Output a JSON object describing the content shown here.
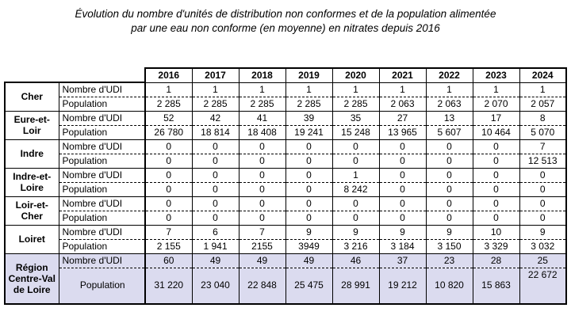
{
  "title": {
    "line1": "Évolution du nombre d'unités de distribution non conformes et de la population alimentée",
    "line2": "par une eau non conforme (en moyenne) en nitrates depuis 2016"
  },
  "table": {
    "years": [
      "2016",
      "2017",
      "2018",
      "2019",
      "2020",
      "2021",
      "2022",
      "2023",
      "2024"
    ],
    "metric_labels": {
      "udi": "Nombre d'UDI",
      "population": "Population"
    },
    "groups": [
      {
        "name": "Cher",
        "highlight": false,
        "udi": [
          "1",
          "1",
          "1",
          "1",
          "1",
          "1",
          "1",
          "1",
          "1"
        ],
        "population": [
          "2 285",
          "2 285",
          "2 285",
          "2 285",
          "2 285",
          "2 063",
          "2 063",
          "2 070",
          "2 057"
        ]
      },
      {
        "name": "Eure-et-Loir",
        "highlight": false,
        "udi": [
          "52",
          "42",
          "41",
          "39",
          "35",
          "27",
          "13",
          "17",
          "8"
        ],
        "population": [
          "26 780",
          "18 814",
          "18 408",
          "19 241",
          "15 248",
          "13 965",
          "5 607",
          "10 464",
          "5 070"
        ]
      },
      {
        "name": "Indre",
        "highlight": false,
        "udi": [
          "0",
          "0",
          "0",
          "0",
          "0",
          "0",
          "0",
          "0",
          "7"
        ],
        "population": [
          "0",
          "0",
          "0",
          "0",
          "0",
          "0",
          "0",
          "0",
          "12 513"
        ]
      },
      {
        "name": "Indre-et-Loire",
        "highlight": false,
        "udi": [
          "0",
          "0",
          "0",
          "0",
          "1",
          "0",
          "0",
          "0",
          "0"
        ],
        "population": [
          "0",
          "0",
          "0",
          "0",
          "8 242",
          "0",
          "0",
          "0",
          "0"
        ]
      },
      {
        "name": "Loir-et-Cher",
        "highlight": false,
        "udi": [
          "0",
          "0",
          "0",
          "0",
          "0",
          "0",
          "0",
          "0",
          "0"
        ],
        "population": [
          "0",
          "0",
          "0",
          "0",
          "0",
          "0",
          "0",
          "0",
          "0"
        ]
      },
      {
        "name": "Loiret",
        "highlight": false,
        "udi": [
          "7",
          "6",
          "7",
          "9",
          "9",
          "9",
          "9",
          "10",
          "9"
        ],
        "population": [
          "2 155",
          "1 941",
          "2155",
          "3949",
          "3 216",
          "3 184",
          "3 150",
          "3 329",
          "3 032"
        ]
      },
      {
        "name": "Région Centre-Val de Loire",
        "highlight": true,
        "udi": [
          "60",
          "49",
          "49",
          "49",
          "46",
          "37",
          "23",
          "28",
          "25"
        ],
        "population": [
          "31 220",
          "23 040",
          "22 848",
          "25 475",
          "28 991",
          "19 212",
          "10 820",
          "15 863",
          "22 672"
        ]
      }
    ]
  },
  "colors": {
    "highlight_bg": "#dbdbef",
    "border": "#000000"
  }
}
